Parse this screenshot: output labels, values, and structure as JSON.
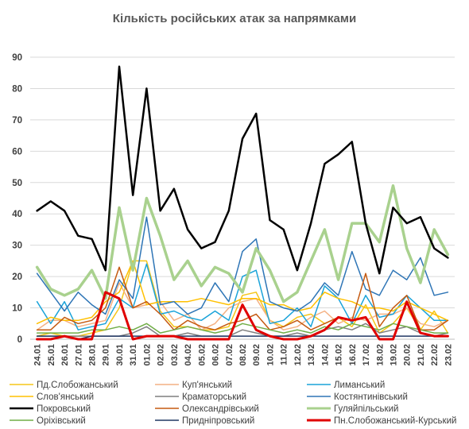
{
  "chart_data": {
    "type": "line",
    "title": "Кількість російських атак за напрямками",
    "xlabel": "",
    "ylabel": "",
    "ylim": [
      0,
      90
    ],
    "yticks": [
      "0",
      "10",
      "20",
      "30",
      "40",
      "50",
      "60",
      "70",
      "80",
      "90"
    ],
    "grid": true,
    "legend_position": "bottom",
    "x": [
      "24.01",
      "25.01",
      "26.01",
      "27.01",
      "28.01",
      "29.01",
      "30.01",
      "31.01",
      "01.02",
      "02.02",
      "03.02",
      "04.02",
      "05.02",
      "06.02",
      "07.02",
      "08.02",
      "09.02",
      "10.02",
      "11.02",
      "12.02",
      "13.02",
      "14.02",
      "15.02",
      "16.02",
      "17.02",
      "18.02",
      "19.02",
      "20.02",
      "21.02",
      "22.02",
      "23.02"
    ],
    "x_tick_labels": [
      "24.01",
      "25.01",
      "26.01",
      "27.01",
      "28.01",
      "29.01",
      "30.01",
      "31.01",
      "01.02",
      "02.02",
      "03.02",
      "04.02",
      "05.02",
      "06.02",
      "07.02",
      "08.02",
      "09.02",
      "10.02",
      "11.02",
      "12.02",
      "13.02",
      "14.02",
      "15.02",
      "16.02",
      "17.02",
      "18.02",
      "19.02",
      "20.02",
      "21.02",
      "22.02",
      "23.02"
    ],
    "series": [
      {
        "name": "Пд.Слобожанський",
        "color": "#f5c518",
        "width": 1.5,
        "values": [
          1,
          2,
          1,
          1,
          2,
          3,
          10,
          25,
          25,
          9,
          4,
          4,
          3,
          3,
          4,
          14,
          15,
          6,
          4,
          7,
          8,
          5,
          7,
          4,
          11,
          2,
          5,
          10,
          3,
          9,
          2
        ]
      },
      {
        "name": "Куп'янський",
        "color": "#f4b183",
        "width": 1.5,
        "values": [
          3,
          6,
          6,
          4,
          5,
          6,
          18,
          10,
          11,
          12,
          6,
          8,
          3,
          5,
          10,
          12,
          13,
          6,
          3,
          4,
          7,
          9,
          5,
          7,
          6,
          8,
          8,
          10,
          5,
          4,
          6
        ]
      },
      {
        "name": "Лиманський",
        "color": "#1aa3d9",
        "width": 1.5,
        "values": [
          12,
          5,
          12,
          3,
          4,
          5,
          13,
          10,
          24,
          8,
          9,
          7,
          6,
          9,
          6,
          20,
          22,
          5,
          6,
          10,
          4,
          17,
          13,
          5,
          14,
          7,
          8,
          14,
          10,
          6,
          6
        ]
      },
      {
        "name": "Слов'янський",
        "color": "#ffc000",
        "width": 1.5,
        "values": [
          5,
          7,
          6,
          6,
          7,
          12,
          15,
          25,
          11,
          12,
          12,
          12,
          13,
          12,
          11,
          13,
          13,
          11,
          11,
          9,
          10,
          15,
          13,
          12,
          10,
          10,
          9,
          12,
          10,
          8,
          6
        ]
      },
      {
        "name": "Краматорський",
        "color": "#7f7f7f",
        "width": 1.5,
        "values": [
          1,
          1,
          1,
          1,
          1,
          1,
          1,
          2,
          4,
          1,
          1,
          2,
          1,
          1,
          1,
          3,
          2,
          1,
          1,
          2,
          1,
          3,
          4,
          3,
          5,
          2,
          3,
          4,
          2,
          1,
          2
        ]
      },
      {
        "name": "Костянтинівський",
        "color": "#2e75b6",
        "width": 1.5,
        "values": [
          21,
          15,
          9,
          15,
          11,
          8,
          19,
          13,
          39,
          11,
          12,
          8,
          10,
          18,
          12,
          28,
          32,
          12,
          10,
          9,
          12,
          18,
          14,
          28,
          16,
          14,
          22,
          19,
          26,
          14,
          15
        ]
      },
      {
        "name": "Покровський",
        "color": "#000000",
        "width": 2.5,
        "values": [
          41,
          44,
          41,
          33,
          32,
          22,
          87,
          46,
          80,
          41,
          48,
          35,
          29,
          31,
          41,
          64,
          72,
          38,
          35,
          22,
          37,
          56,
          59,
          63,
          37,
          21,
          42,
          37,
          39,
          29,
          26
        ]
      },
      {
        "name": "Олександрівський",
        "color": "#c55a11",
        "width": 1.5,
        "values": [
          3,
          3,
          7,
          5,
          6,
          10,
          23,
          10,
          12,
          8,
          3,
          6,
          4,
          3,
          5,
          6,
          8,
          3,
          4,
          6,
          3,
          5,
          7,
          6,
          21,
          4,
          10,
          14,
          3,
          3,
          6
        ]
      },
      {
        "name": "Гуляйпільський",
        "color": "#a9d18e",
        "width": 3.5,
        "values": [
          23,
          16,
          14,
          16,
          22,
          13,
          42,
          22,
          45,
          33,
          19,
          25,
          17,
          23,
          21,
          15,
          29,
          22,
          12,
          15,
          25,
          35,
          19,
          37,
          37,
          31,
          49,
          29,
          18,
          35,
          27
        ]
      },
      {
        "name": "Оріхівський",
        "color": "#70ad47",
        "width": 1.5,
        "values": [
          2,
          2,
          2,
          2,
          3,
          3,
          4,
          3,
          5,
          2,
          3,
          4,
          3,
          2,
          3,
          5,
          4,
          3,
          2,
          3,
          2,
          4,
          3,
          5,
          4,
          3,
          5,
          4,
          3,
          2,
          2
        ]
      },
      {
        "name": "Придніпровський",
        "color": "#203864",
        "width": 1.5,
        "values": [
          1,
          1,
          1,
          0,
          1,
          1,
          1,
          1,
          1,
          1,
          1,
          1,
          1,
          1,
          1,
          1,
          1,
          1,
          1,
          1,
          1,
          1,
          1,
          1,
          1,
          1,
          1,
          1,
          1,
          1,
          1
        ]
      },
      {
        "name": "Пн.Слобожанський-Курський",
        "color": "#e00000",
        "width": 3,
        "values": [
          0,
          0,
          1,
          0,
          0,
          15,
          13,
          0,
          1,
          1,
          1,
          0,
          0,
          0,
          0,
          11,
          3,
          1,
          0,
          0,
          1,
          3,
          7,
          6,
          7,
          0,
          0,
          12,
          2,
          1,
          1
        ]
      }
    ]
  }
}
